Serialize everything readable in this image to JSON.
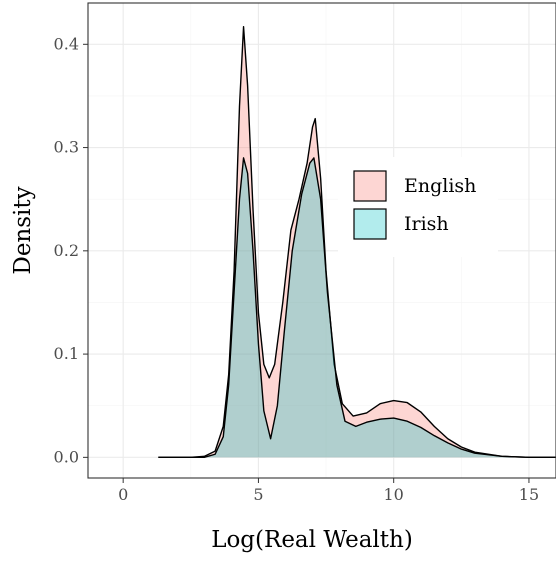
{
  "chart_data": {
    "type": "area",
    "title": "",
    "xlabel": "Log(Real Wealth)",
    "ylabel": "Density",
    "xlim": [
      -1.3,
      16
    ],
    "ylim": [
      -0.02,
      0.44
    ],
    "x_ticks": [
      0,
      5,
      10,
      15
    ],
    "x_tick_labels": [
      "0",
      "5",
      "10",
      "15"
    ],
    "y_ticks": [
      0.0,
      0.1,
      0.2,
      0.3,
      0.4
    ],
    "y_tick_labels": [
      "0.0",
      "0.1",
      "0.2",
      "0.3",
      "0.4"
    ],
    "grid": true,
    "legend_position": "right",
    "series": [
      {
        "name": "English",
        "fill": "#f8766d",
        "opacity": 0.3,
        "points": [
          [
            1.3,
            0.0
          ],
          [
            2.5,
            0.0
          ],
          [
            3.0,
            0.001
          ],
          [
            3.4,
            0.006
          ],
          [
            3.7,
            0.03
          ],
          [
            3.9,
            0.08
          ],
          [
            4.1,
            0.18
          ],
          [
            4.3,
            0.34
          ],
          [
            4.45,
            0.417
          ],
          [
            4.6,
            0.36
          ],
          [
            4.8,
            0.24
          ],
          [
            5.0,
            0.14
          ],
          [
            5.2,
            0.09
          ],
          [
            5.4,
            0.077
          ],
          [
            5.6,
            0.09
          ],
          [
            5.9,
            0.15
          ],
          [
            6.2,
            0.22
          ],
          [
            6.5,
            0.25
          ],
          [
            6.8,
            0.285
          ],
          [
            7.0,
            0.32
          ],
          [
            7.1,
            0.328
          ],
          [
            7.3,
            0.27
          ],
          [
            7.5,
            0.18
          ],
          [
            7.8,
            0.09
          ],
          [
            8.1,
            0.052
          ],
          [
            8.5,
            0.04
          ],
          [
            9.0,
            0.043
          ],
          [
            9.5,
            0.052
          ],
          [
            10.0,
            0.055
          ],
          [
            10.5,
            0.053
          ],
          [
            11.0,
            0.044
          ],
          [
            11.5,
            0.03
          ],
          [
            12.0,
            0.018
          ],
          [
            12.5,
            0.01
          ],
          [
            13.0,
            0.005
          ],
          [
            14.0,
            0.001
          ],
          [
            15.0,
            0.0
          ],
          [
            16.0,
            0.0
          ]
        ]
      },
      {
        "name": "Irish",
        "fill": "#00bfc4",
        "opacity": 0.3,
        "points": [
          [
            1.3,
            0.0
          ],
          [
            2.5,
            0.0
          ],
          [
            3.0,
            0.0
          ],
          [
            3.4,
            0.003
          ],
          [
            3.7,
            0.02
          ],
          [
            3.9,
            0.07
          ],
          [
            4.1,
            0.16
          ],
          [
            4.3,
            0.25
          ],
          [
            4.45,
            0.29
          ],
          [
            4.6,
            0.275
          ],
          [
            4.8,
            0.2
          ],
          [
            5.0,
            0.11
          ],
          [
            5.2,
            0.045
          ],
          [
            5.45,
            0.018
          ],
          [
            5.7,
            0.05
          ],
          [
            5.95,
            0.12
          ],
          [
            6.25,
            0.2
          ],
          [
            6.6,
            0.255
          ],
          [
            6.9,
            0.285
          ],
          [
            7.05,
            0.29
          ],
          [
            7.3,
            0.25
          ],
          [
            7.55,
            0.16
          ],
          [
            7.9,
            0.07
          ],
          [
            8.2,
            0.035
          ],
          [
            8.6,
            0.03
          ],
          [
            9.0,
            0.034
          ],
          [
            9.5,
            0.037
          ],
          [
            10.0,
            0.038
          ],
          [
            10.5,
            0.035
          ],
          [
            11.0,
            0.029
          ],
          [
            11.5,
            0.021
          ],
          [
            12.0,
            0.014
          ],
          [
            12.5,
            0.008
          ],
          [
            13.0,
            0.004
          ],
          [
            14.0,
            0.001
          ],
          [
            15.0,
            0.0
          ],
          [
            16.0,
            0.0
          ]
        ]
      }
    ]
  }
}
